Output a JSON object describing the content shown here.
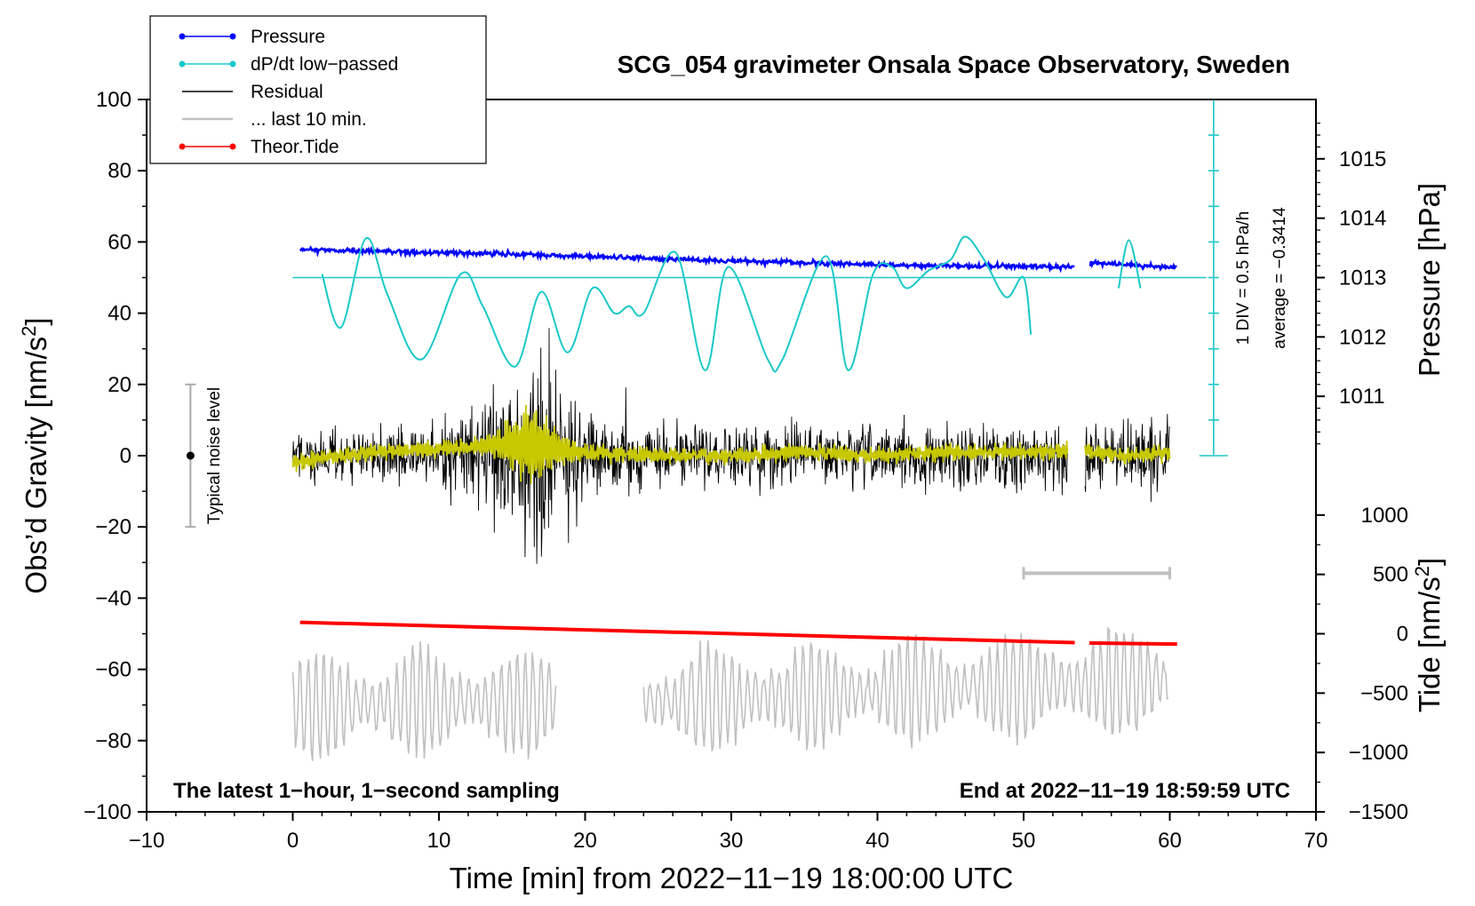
{
  "chart_data": {
    "type": "line",
    "title": "SCG_054 gravimeter Onsala Space Observatory, Sweden",
    "xlabel": "Time [min] from 2022−11−19 18:00:00 UTC",
    "ylabel_left_main": "Obs’d Gravity [nm/s",
    "ylabel_left_sup": "2",
    "ylabel_left_tail": "]",
    "ylabel_right_pressure": "Pressure [hPa]",
    "ylabel_right_tide_main": "Tide [nm/s",
    "ylabel_right_tide_sup": "2",
    "ylabel_right_tide_tail": "]",
    "xlim": [
      -10,
      70
    ],
    "ylim": [
      -100,
      100
    ],
    "x_ticks": [
      "−10",
      "0",
      "10",
      "20",
      "30",
      "40",
      "50",
      "60",
      "70"
    ],
    "y_ticks": [
      "−100",
      "−80",
      "−60",
      "−40",
      "−20",
      "0",
      "20",
      "40",
      "60",
      "80",
      "100"
    ],
    "pressure_axis": {
      "ticks": [
        "1011",
        "1012",
        "1013",
        "1014",
        "1015"
      ],
      "values": [
        1011,
        1012,
        1013,
        1014,
        1015
      ],
      "gravity_at_1013": 50,
      "gravity_per_hpa": 16.67
    },
    "tide_axis": {
      "ticks": [
        "1000",
        "500",
        "0",
        "−500",
        "−1000",
        "−1500"
      ],
      "values": [
        1000,
        500,
        0,
        -500,
        -1000,
        -1500
      ],
      "gravity_at_0": -50,
      "gravity_per_nms2": 0.03333
    },
    "legend": [
      {
        "label": "Pressure",
        "color": "#0000ff",
        "marker": true
      },
      {
        "label": "dP/dt low−passed",
        "color": "#19c8c8",
        "marker": true
      },
      {
        "label": "Residual",
        "color": "#000000",
        "marker": false
      },
      {
        "label": "... last 10 min.",
        "color": "#c0c0c0",
        "marker": false
      },
      {
        "label": "Theor.Tide",
        "color": "#ff0000",
        "marker": true
      }
    ],
    "colors": {
      "pressure": "#0000ff",
      "dpdt": "#19c8c8",
      "residual": "#000000",
      "lowpass": "#c8c800",
      "last10": "#c0c0c0",
      "tide": "#ff0000",
      "noise": "#aaaaaa"
    },
    "annotations": {
      "bottom_left": "The latest 1−hour, 1−second sampling",
      "bottom_right": "End at 2022−11−19 18:59:59 UTC",
      "noise_label": "Typical noise level",
      "div_label": "1 DIV = 0.5 hPa/h",
      "average_label": "average = −0.3414"
    },
    "noise_bar": {
      "x": -7,
      "y_center": 0,
      "y_half": 20
    },
    "div_scale": {
      "x": 63,
      "y_bottom": 0,
      "y_top": 100,
      "n_div": 10
    },
    "last10_bar": {
      "x_start": 50,
      "x_end": 60,
      "y": -33
    },
    "dpdt_zero_line": {
      "x_start": 0,
      "x_end": 62.5,
      "y": 50
    },
    "pressure_series": [
      {
        "x": 0.5,
        "y": 57.8
      },
      {
        "x": 3,
        "y": 57.6
      },
      {
        "x": 6,
        "y": 57.4
      },
      {
        "x": 10,
        "y": 57.0
      },
      {
        "x": 14,
        "y": 56.7
      },
      {
        "x": 18,
        "y": 56.2
      },
      {
        "x": 22,
        "y": 55.7
      },
      {
        "x": 26,
        "y": 55.2
      },
      {
        "x": 30,
        "y": 54.7
      },
      {
        "x": 34,
        "y": 54.2
      },
      {
        "x": 38,
        "y": 53.8
      },
      {
        "x": 42,
        "y": 53.5
      },
      {
        "x": 46,
        "y": 53.3
      },
      {
        "x": 50,
        "y": 53.2
      },
      {
        "x": 53.5,
        "y": 53.0
      },
      {
        "x": 54.5,
        "y": 54.2
      },
      {
        "x": 57,
        "y": 53.6
      },
      {
        "x": 60.5,
        "y": 52.8
      }
    ],
    "dpdt_series": [
      {
        "x": 2,
        "y": 51
      },
      {
        "x": 3.3,
        "y": 36
      },
      {
        "x": 5,
        "y": 61
      },
      {
        "x": 6.5,
        "y": 45
      },
      {
        "x": 8.8,
        "y": 27
      },
      {
        "x": 11.5,
        "y": 51
      },
      {
        "x": 13,
        "y": 42
      },
      {
        "x": 15.2,
        "y": 25
      },
      {
        "x": 17,
        "y": 46
      },
      {
        "x": 18.8,
        "y": 29
      },
      {
        "x": 20.5,
        "y": 47
      },
      {
        "x": 22,
        "y": 40
      },
      {
        "x": 23,
        "y": 42
      },
      {
        "x": 24,
        "y": 40
      },
      {
        "x": 26.2,
        "y": 57
      },
      {
        "x": 28.2,
        "y": 24
      },
      {
        "x": 29.8,
        "y": 53
      },
      {
        "x": 32.5,
        "y": 27
      },
      {
        "x": 33.5,
        "y": 27
      },
      {
        "x": 36.5,
        "y": 56
      },
      {
        "x": 38,
        "y": 24
      },
      {
        "x": 39.7,
        "y": 51
      },
      {
        "x": 41,
        "y": 53
      },
      {
        "x": 42,
        "y": 47
      },
      {
        "x": 43.5,
        "y": 52
      },
      {
        "x": 45,
        "y": 55
      },
      {
        "x": 46,
        "y": 61.5
      },
      {
        "x": 47.3,
        "y": 55
      },
      {
        "x": 48.8,
        "y": 44.5
      },
      {
        "x": 50,
        "y": 50
      },
      {
        "x": 50.5,
        "y": 34
      }
    ],
    "dpdt_series_2": [
      {
        "x": 56.5,
        "y": 47
      },
      {
        "x": 57.2,
        "y": 60.5
      },
      {
        "x": 58,
        "y": 47
      }
    ],
    "residual_series": [
      {
        "x": 0,
        "y": -2
      },
      {
        "x": 5,
        "y": 1
      },
      {
        "x": 10,
        "y": 2
      },
      {
        "x": 14,
        "y": 3
      },
      {
        "x": 16.5,
        "y": 3
      },
      {
        "x": 19,
        "y": 1
      },
      {
        "x": 25,
        "y": 0
      },
      {
        "x": 30,
        "y": 0
      },
      {
        "x": 35,
        "y": 1
      },
      {
        "x": 40,
        "y": 0
      },
      {
        "x": 45,
        "y": 1
      },
      {
        "x": 50,
        "y": 1
      },
      {
        "x": 53,
        "y": 1
      },
      {
        "x": 54.2,
        "y": 1
      },
      {
        "x": 57,
        "y": 0
      },
      {
        "x": 60,
        "y": 1
      }
    ],
    "residual_envelope": [
      {
        "x": 0,
        "amp": 9
      },
      {
        "x": 8,
        "amp": 9
      },
      {
        "x": 12,
        "amp": 13
      },
      {
        "x": 14,
        "amp": 22
      },
      {
        "x": 16.5,
        "amp": 36
      },
      {
        "x": 18.5,
        "amp": 25
      },
      {
        "x": 21,
        "amp": 11
      },
      {
        "x": 26,
        "amp": 10
      },
      {
        "x": 40,
        "amp": 10
      },
      {
        "x": 53,
        "amp": 11
      },
      {
        "x": 54.2,
        "amp": 11
      },
      {
        "x": 60,
        "amp": 12
      }
    ],
    "tide_series": [
      {
        "x": 0.5,
        "y": -46.8
      },
      {
        "x": 53.5,
        "y": -52.5
      },
      {
        "x": 54.5,
        "y": -52.6
      },
      {
        "x": 60.5,
        "y": -52.9
      }
    ],
    "last10_series": [
      {
        "x": 0,
        "y": -70
      },
      {
        "x": 18,
        "y": -69
      },
      {
        "x": 24,
        "y": -69
      },
      {
        "x": 60,
        "y": -63
      }
    ]
  }
}
